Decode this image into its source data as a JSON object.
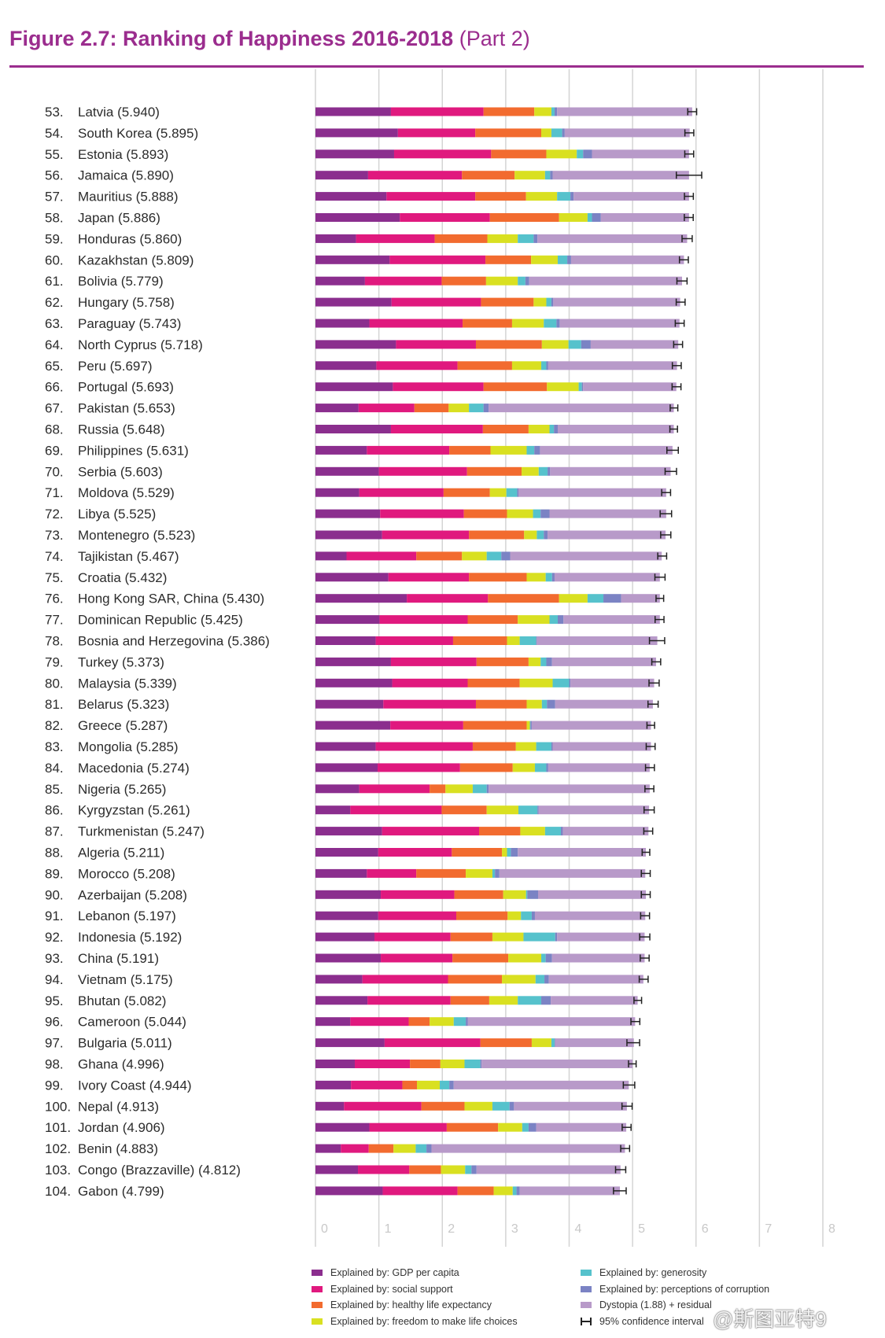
{
  "figure": {
    "title": "Figure 2.7: Ranking of Happiness 2016-2018",
    "subtitle": "(Part 2)"
  },
  "chart_data": {
    "type": "bar",
    "orientation": "horizontal",
    "stacked": true,
    "xlim": [
      0,
      8
    ],
    "x_ticks": [
      "0",
      "1",
      "2",
      "3",
      "4",
      "5",
      "6",
      "7",
      "8"
    ],
    "grid": true,
    "legend_position": "bottom",
    "series": [
      {
        "key": "gdp",
        "name": "Explained by: GDP per capita",
        "color": "#8b2e8e"
      },
      {
        "key": "social",
        "name": "Explained by: social support",
        "color": "#e0197e"
      },
      {
        "key": "health",
        "name": "Explained by: healthy life expectancy",
        "color": "#f26b2f"
      },
      {
        "key": "freedom",
        "name": "Explained by: freedom to make life choices",
        "color": "#d9e021"
      },
      {
        "key": "generosity",
        "name": "Explained by: generosity",
        "color": "#56c2cc"
      },
      {
        "key": "corruption",
        "name": "Explained by: perceptions of corruption",
        "color": "#7b83c4"
      },
      {
        "key": "dystopia",
        "name": "Dystopia (1.88) + residual",
        "color": "#b89ac9"
      }
    ],
    "ci_label": "95% confidence interval",
    "ci_half_width": [
      0.07,
      0.07,
      0.07,
      0.2,
      0.07,
      0.07,
      0.08,
      0.07,
      0.08,
      0.07,
      0.07,
      0.07,
      0.07,
      0.07,
      0.06,
      0.06,
      0.09,
      0.09,
      0.07,
      0.09,
      0.08,
      0.07,
      0.08,
      0.06,
      0.07,
      0.12,
      0.07,
      0.08,
      0.08,
      0.06,
      0.07,
      0.07,
      0.07,
      0.08,
      0.07,
      0.06,
      0.07,
      0.07,
      0.07,
      0.08,
      0.07,
      0.07,
      0.06,
      0.07,
      0.1,
      0.06,
      0.09,
      0.08,
      0.07,
      0.07,
      0.08,
      0.1
    ],
    "rows": [
      {
        "rank": "53.",
        "name": "Latvia (5.940)",
        "score": 5.94,
        "values": [
          1.19,
          1.46,
          0.8,
          0.27,
          0.05,
          0.04,
          2.13
        ]
      },
      {
        "rank": "54.",
        "name": "South Korea (5.895)",
        "score": 5.895,
        "values": [
          1.3,
          1.22,
          1.04,
          0.16,
          0.17,
          0.04,
          1.97
        ]
      },
      {
        "rank": "55.",
        "name": "Estonia (5.893)",
        "score": 5.893,
        "values": [
          1.24,
          1.53,
          0.87,
          0.48,
          0.1,
          0.14,
          1.53
        ]
      },
      {
        "rank": "56.",
        "name": "Jamaica (5.890)",
        "score": 5.89,
        "values": [
          0.83,
          1.48,
          0.83,
          0.48,
          0.08,
          0.04,
          2.15
        ]
      },
      {
        "rank": "57.",
        "name": "Mauritius (5.888)",
        "score": 5.888,
        "values": [
          1.12,
          1.4,
          0.8,
          0.49,
          0.21,
          0.05,
          1.82
        ]
      },
      {
        "rank": "58.",
        "name": "Japan (5.886)",
        "score": 5.886,
        "values": [
          1.33,
          1.42,
          1.09,
          0.45,
          0.07,
          0.14,
          1.39
        ]
      },
      {
        "rank": "59.",
        "name": "Honduras (5.860)",
        "score": 5.86,
        "values": [
          0.64,
          1.24,
          0.83,
          0.48,
          0.25,
          0.06,
          2.36
        ]
      },
      {
        "rank": "60.",
        "name": "Kazakhstan (5.809)",
        "score": 5.809,
        "values": [
          1.17,
          1.51,
          0.72,
          0.42,
          0.15,
          0.06,
          1.78
        ]
      },
      {
        "rank": "61.",
        "name": "Bolivia (5.779)",
        "score": 5.779,
        "values": [
          0.78,
          1.21,
          0.7,
          0.5,
          0.12,
          0.06,
          2.41
        ]
      },
      {
        "rank": "62.",
        "name": "Hungary (5.758)",
        "score": 5.758,
        "values": [
          1.2,
          1.41,
          0.83,
          0.2,
          0.08,
          0.03,
          2.0
        ]
      },
      {
        "rank": "63.",
        "name": "Paraguay (5.743)",
        "score": 5.743,
        "values": [
          0.85,
          1.47,
          0.78,
          0.5,
          0.2,
          0.05,
          1.89
        ]
      },
      {
        "rank": "64.",
        "name": "North Cyprus (5.718)",
        "score": 5.718,
        "values": [
          1.27,
          1.26,
          1.04,
          0.42,
          0.2,
          0.15,
          1.38
        ]
      },
      {
        "rank": "65.",
        "name": "Peru (5.697)",
        "score": 5.697,
        "values": [
          0.96,
          1.28,
          0.86,
          0.46,
          0.08,
          0.03,
          2.03
        ]
      },
      {
        "rank": "66.",
        "name": "Portugal (5.693)",
        "score": 5.693,
        "values": [
          1.22,
          1.43,
          1.0,
          0.5,
          0.05,
          0.02,
          1.47
        ]
      },
      {
        "rank": "67.",
        "name": "Pakistan (5.653)",
        "score": 5.653,
        "values": [
          0.68,
          0.88,
          0.54,
          0.32,
          0.23,
          0.08,
          2.92
        ]
      },
      {
        "rank": "68.",
        "name": "Russia (5.648)",
        "score": 5.648,
        "values": [
          1.19,
          1.45,
          0.72,
          0.33,
          0.07,
          0.06,
          1.83
        ]
      },
      {
        "rank": "69.",
        "name": "Philippines (5.631)",
        "score": 5.631,
        "values": [
          0.81,
          1.3,
          0.65,
          0.57,
          0.12,
          0.09,
          2.09
        ]
      },
      {
        "rank": "70.",
        "name": "Serbia (5.603)",
        "score": 5.603,
        "values": [
          1.0,
          1.39,
          0.86,
          0.27,
          0.14,
          0.04,
          1.9
        ]
      },
      {
        "rank": "71.",
        "name": "Moldova (5.529)",
        "score": 5.529,
        "values": [
          0.69,
          1.33,
          0.73,
          0.26,
          0.17,
          0.02,
          2.33
        ]
      },
      {
        "rank": "72.",
        "name": "Libya (5.525)",
        "score": 5.525,
        "values": [
          1.02,
          1.32,
          0.68,
          0.41,
          0.12,
          0.14,
          1.84
        ]
      },
      {
        "rank": "73.",
        "name": "Montenegro (5.523)",
        "score": 5.523,
        "values": [
          1.05,
          1.37,
          0.87,
          0.2,
          0.11,
          0.06,
          1.86
        ]
      },
      {
        "rank": "74.",
        "name": "Tajikistan (5.467)",
        "score": 5.467,
        "values": [
          0.49,
          1.1,
          0.72,
          0.39,
          0.23,
          0.14,
          2.39
        ]
      },
      {
        "rank": "75.",
        "name": "Croatia (5.432)",
        "score": 5.432,
        "values": [
          1.15,
          1.27,
          0.91,
          0.3,
          0.1,
          0.04,
          1.66
        ]
      },
      {
        "rank": "76.",
        "name": "Hong Kong SAR, China (5.430)",
        "score": 5.43,
        "values": [
          1.44,
          1.28,
          1.12,
          0.45,
          0.25,
          0.28,
          0.61
        ]
      },
      {
        "rank": "77.",
        "name": "Dominican Republic (5.425)",
        "score": 5.425,
        "values": [
          1.01,
          1.39,
          0.79,
          0.5,
          0.13,
          0.09,
          1.52
        ]
      },
      {
        "rank": "78.",
        "name": "Bosnia and Herzegovina (5.386)",
        "score": 5.386,
        "values": [
          0.95,
          1.22,
          0.85,
          0.2,
          0.26,
          0.01,
          1.9
        ]
      },
      {
        "rank": "79.",
        "name": "Turkey (5.373)",
        "score": 5.373,
        "values": [
          1.19,
          1.35,
          0.82,
          0.19,
          0.09,
          0.09,
          1.64
        ]
      },
      {
        "rank": "80.",
        "name": "Malaysia (5.339)",
        "score": 5.339,
        "values": [
          1.21,
          1.19,
          0.82,
          0.52,
          0.26,
          0.02,
          1.32
        ]
      },
      {
        "rank": "81.",
        "name": "Belarus (5.323)",
        "score": 5.323,
        "values": [
          1.07,
          1.46,
          0.8,
          0.24,
          0.08,
          0.13,
          1.54
        ]
      },
      {
        "rank": "82.",
        "name": "Greece (5.287)",
        "score": 5.287,
        "values": [
          1.18,
          1.15,
          1.0,
          0.05,
          0.01,
          0.02,
          1.88
        ]
      },
      {
        "rank": "83.",
        "name": "Mongolia (5.285)",
        "score": 5.285,
        "values": [
          0.95,
          1.53,
          0.68,
          0.32,
          0.24,
          0.02,
          1.55
        ]
      },
      {
        "rank": "84.",
        "name": "Macedonia (5.274)",
        "score": 5.274,
        "values": [
          0.98,
          1.3,
          0.83,
          0.35,
          0.18,
          0.03,
          1.6
        ]
      },
      {
        "rank": "85.",
        "name": "Nigeria (5.265)",
        "score": 5.265,
        "values": [
          0.69,
          1.11,
          0.25,
          0.43,
          0.22,
          0.03,
          2.54
        ]
      },
      {
        "rank": "86.",
        "name": "Kyrgyzstan (5.261)",
        "score": 5.261,
        "values": [
          0.55,
          1.44,
          0.71,
          0.5,
          0.3,
          0.02,
          1.74
        ]
      },
      {
        "rank": "87.",
        "name": "Turkmenistan (5.247)",
        "score": 5.247,
        "values": [
          1.05,
          1.53,
          0.65,
          0.39,
          0.25,
          0.03,
          1.35
        ]
      },
      {
        "rank": "88.",
        "name": "Algeria (5.211)",
        "score": 5.211,
        "values": [
          0.99,
          1.16,
          0.79,
          0.08,
          0.06,
          0.11,
          2.02
        ]
      },
      {
        "rank": "89.",
        "name": "Morocco (5.208)",
        "score": 5.208,
        "values": [
          0.81,
          0.78,
          0.78,
          0.42,
          0.04,
          0.07,
          2.3
        ]
      },
      {
        "rank": "90.",
        "name": "Azerbaijan (5.208)",
        "score": 5.208,
        "values": [
          1.03,
          1.16,
          0.77,
          0.36,
          0.02,
          0.17,
          1.7
        ]
      },
      {
        "rank": "91.",
        "name": "Lebanon (5.197)",
        "score": 5.197,
        "values": [
          0.99,
          1.23,
          0.81,
          0.21,
          0.17,
          0.05,
          1.74
        ]
      },
      {
        "rank": "92.",
        "name": "Indonesia (5.192)",
        "score": 5.192,
        "values": [
          0.93,
          1.2,
          0.66,
          0.49,
          0.5,
          0.03,
          1.38
        ]
      },
      {
        "rank": "93.",
        "name": "China (5.191)",
        "score": 5.191,
        "values": [
          1.03,
          1.13,
          0.88,
          0.52,
          0.07,
          0.1,
          1.46
        ]
      },
      {
        "rank": "94.",
        "name": "Vietnam (5.175)",
        "score": 5.175,
        "values": [
          0.74,
          1.35,
          0.85,
          0.53,
          0.14,
          0.07,
          1.49
        ]
      },
      {
        "rank": "95.",
        "name": "Bhutan (5.082)",
        "score": 5.082,
        "values": [
          0.82,
          1.31,
          0.61,
          0.45,
          0.37,
          0.15,
          1.37
        ]
      },
      {
        "rank": "96.",
        "name": "Cameroon (5.044)",
        "score": 5.044,
        "values": [
          0.55,
          0.92,
          0.33,
          0.38,
          0.19,
          0.03,
          2.64
        ]
      },
      {
        "rank": "97.",
        "name": "Bulgaria (5.011)",
        "score": 5.011,
        "values": [
          1.09,
          1.51,
          0.81,
          0.31,
          0.05,
          0.01,
          1.24
        ]
      },
      {
        "rank": "98.",
        "name": "Ghana (4.996)",
        "score": 4.996,
        "values": [
          0.62,
          0.87,
          0.48,
          0.38,
          0.25,
          0.02,
          2.38
        ]
      },
      {
        "rank": "99.",
        "name": "Ivory Coast (4.944)",
        "score": 4.944,
        "values": [
          0.56,
          0.81,
          0.23,
          0.36,
          0.15,
          0.07,
          2.76
        ]
      },
      {
        "rank": "100.",
        "name": "Nepal (4.913)",
        "score": 4.913,
        "values": [
          0.45,
          1.22,
          0.68,
          0.44,
          0.27,
          0.07,
          1.78
        ]
      },
      {
        "rank": "101.",
        "name": "Jordan (4.906)",
        "score": 4.906,
        "values": [
          0.85,
          1.22,
          0.81,
          0.38,
          0.1,
          0.12,
          1.42
        ]
      },
      {
        "rank": "102.",
        "name": "Benin (4.883)",
        "score": 4.883,
        "values": [
          0.4,
          0.44,
          0.39,
          0.35,
          0.17,
          0.08,
          3.05
        ]
      },
      {
        "rank": "103.",
        "name": "Congo (Brazzaville) (4.812)",
        "score": 4.812,
        "values": [
          0.67,
          0.81,
          0.5,
          0.38,
          0.1,
          0.08,
          2.27
        ]
      },
      {
        "rank": "104.",
        "name": "Gabon (4.799)",
        "score": 4.799,
        "values": [
          1.06,
          1.18,
          0.57,
          0.3,
          0.06,
          0.05,
          1.58
        ]
      }
    ]
  },
  "watermark": "@斯图亚特9"
}
